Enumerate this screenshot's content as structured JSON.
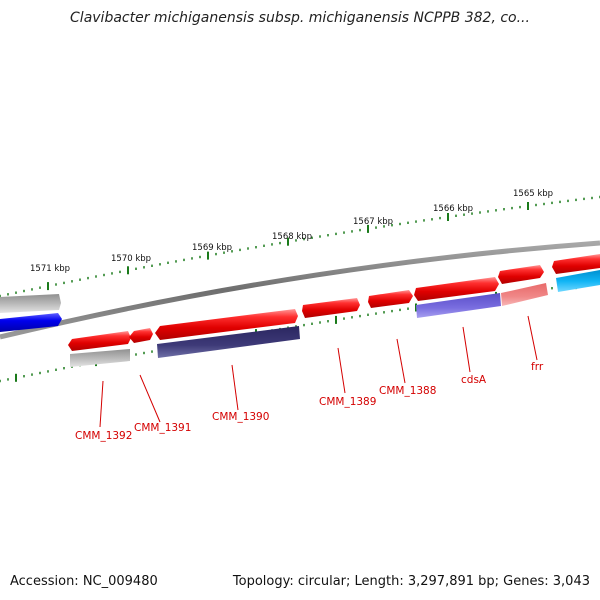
{
  "title": "Clavibacter michiganensis subsp. michiganensis NCPPB 382, co...",
  "footer": {
    "accession": "Accession: NC_009480",
    "summary": "Topology: circular; Length: 3,297,891 bp; Genes: 3,043"
  },
  "colors": {
    "backbone": "#7a7a7a",
    "tick": "#1a7a1a",
    "gene_label": "#d40000",
    "forward_gene": "#ee0000",
    "gray_gene": "#b4b4b4",
    "blue_gene": "#0000ee",
    "navy_gene": "#3e3a78",
    "lavender_gene": "#7468d8",
    "pink_gene": "#f08080",
    "cyan_gene": "#10b4f4"
  },
  "chart_data": {
    "type": "genome_map",
    "ticks_kbp": [
      1565,
      1566,
      1567,
      1568,
      1569,
      1570,
      1571
    ],
    "tick_labels": [
      "1565 kbp",
      "1566 kbp",
      "1567 kbp",
      "1568 kbp",
      "1569 kbp",
      "1570 kbp",
      "1571 kbp"
    ],
    "gene_labels": [
      "frr",
      "cdsA",
      "CMM_1388",
      "CMM_1389",
      "CMM_1390",
      "CMM_1391",
      "CMM_1392"
    ]
  }
}
